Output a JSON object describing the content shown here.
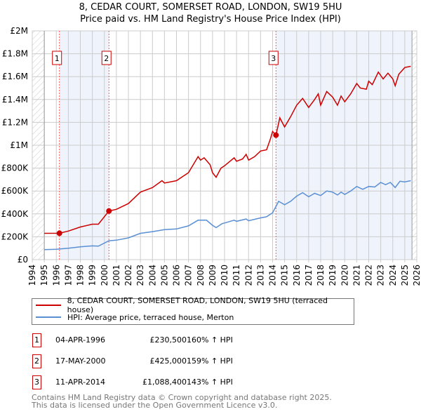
{
  "title": "8, CEDAR COURT, SOMERSET ROAD, LONDON, SW19 5HU",
  "subtitle": "Price paid vs. HM Land Registry's House Price Index (HPI)",
  "chart_data": {
    "type": "line",
    "xlim": [
      1994,
      2026
    ],
    "ylim": [
      0,
      2000000
    ],
    "x_ticks": [
      "1994",
      "1995",
      "1996",
      "1997",
      "1998",
      "1999",
      "2000",
      "2001",
      "2002",
      "2003",
      "2004",
      "2005",
      "2006",
      "2007",
      "2008",
      "2009",
      "2010",
      "2011",
      "2012",
      "2013",
      "2014",
      "2015",
      "2016",
      "2017",
      "2018",
      "2019",
      "2020",
      "2021",
      "2022",
      "2023",
      "2024",
      "2025",
      "2026"
    ],
    "y_ticks": [
      {
        "v": 0,
        "label": "£0"
      },
      {
        "v": 200000,
        "label": "£200K"
      },
      {
        "v": 400000,
        "label": "£400K"
      },
      {
        "v": 600000,
        "label": "£600K"
      },
      {
        "v": 800000,
        "label": "£800K"
      },
      {
        "v": 1000000,
        "label": "£1M"
      },
      {
        "v": 1200000,
        "label": "£1.2M"
      },
      {
        "v": 1400000,
        "label": "£1.4M"
      },
      {
        "v": 1600000,
        "label": "£1.6M"
      },
      {
        "v": 1800000,
        "label": "£1.8M"
      },
      {
        "v": 2000000,
        "label": "£2M"
      }
    ],
    "grid": true,
    "shaded_ranges": [
      [
        1996.26,
        2000.38
      ],
      [
        2014.28,
        2025.6
      ]
    ],
    "hatched_ranges": [
      [
        1994,
        1995
      ],
      [
        2025.6,
        2026
      ]
    ],
    "series": [
      {
        "name": "8, CEDAR COURT, SOMERSET ROAD, LONDON, SW19 5HU (terraced house)",
        "color": "#cc0000",
        "x": [
          1995,
          1996.26,
          1997,
          1998,
          1999,
          1999.5,
          2000.38,
          2001,
          2002,
          2003,
          2004,
          2004.8,
          2005,
          2006,
          2007,
          2007.8,
          2008,
          2008.3,
          2008.8,
          2009,
          2009.3,
          2009.7,
          2010,
          2010.8,
          2011,
          2011.5,
          2011.8,
          2012,
          2012.5,
          2013,
          2013.5,
          2013.8,
          2014,
          2014.28,
          2014.6,
          2015,
          2015.5,
          2016,
          2016.5,
          2017,
          2017.5,
          2017.8,
          2018,
          2018.5,
          2019,
          2019.4,
          2019.7,
          2020,
          2020.5,
          2021,
          2021.3,
          2021.8,
          2022,
          2022.3,
          2022.8,
          2023.2,
          2023.6,
          2024,
          2024.2,
          2024.5,
          2025,
          2025.5
        ],
        "values": [
          230000,
          230500,
          250000,
          285000,
          310000,
          310000,
          425000,
          440000,
          490000,
          590000,
          630000,
          690000,
          670000,
          690000,
          760000,
          900000,
          870000,
          890000,
          830000,
          760000,
          720000,
          800000,
          820000,
          890000,
          860000,
          880000,
          920000,
          870000,
          900000,
          950000,
          960000,
          1050000,
          1120000,
          1088400,
          1240000,
          1160000,
          1250000,
          1350000,
          1410000,
          1330000,
          1400000,
          1450000,
          1350000,
          1470000,
          1420000,
          1350000,
          1430000,
          1380000,
          1450000,
          1540000,
          1500000,
          1490000,
          1560000,
          1530000,
          1640000,
          1580000,
          1630000,
          1580000,
          1520000,
          1620000,
          1680000,
          1690000
        ]
      },
      {
        "name": "HPI: Average price, terraced house, Merton",
        "color": "#5b8fd4",
        "x": [
          1995,
          1996,
          1997,
          1998,
          1999,
          1999.5,
          2000.38,
          2001,
          2002,
          2003,
          2004,
          2005,
          2006,
          2007,
          2007.8,
          2008.5,
          2009,
          2009.3,
          2009.8,
          2010,
          2010.8,
          2011,
          2011.8,
          2012,
          2013,
          2013.5,
          2014,
          2014.5,
          2015,
          2015.5,
          2016,
          2016.5,
          2017,
          2017.5,
          2018,
          2018.5,
          2019,
          2019.4,
          2019.7,
          2020,
          2020.5,
          2021,
          2021.5,
          2022,
          2022.5,
          2023,
          2023.4,
          2023.8,
          2024.2,
          2024.6,
          2025,
          2025.5
        ],
        "values": [
          88000,
          90000,
          100000,
          112000,
          120000,
          118000,
          165000,
          170000,
          190000,
          230000,
          245000,
          262000,
          268000,
          295000,
          345000,
          345000,
          300000,
          280000,
          315000,
          320000,
          345000,
          335000,
          355000,
          340000,
          365000,
          375000,
          410000,
          510000,
          480000,
          510000,
          555000,
          585000,
          550000,
          580000,
          560000,
          600000,
          590000,
          565000,
          590000,
          570000,
          600000,
          640000,
          615000,
          640000,
          635000,
          675000,
          655000,
          675000,
          630000,
          685000,
          680000,
          690000
        ]
      }
    ],
    "sales": [
      {
        "label": "1",
        "x": 2000.38,
        "xdate": 1996.26,
        "value": 230500
      },
      {
        "label": "2",
        "x": 2000.38,
        "value": 425000
      },
      {
        "label": "3",
        "x": 2014.28,
        "value": 1088400
      }
    ]
  },
  "legend": {
    "items": [
      {
        "label": "8, CEDAR COURT, SOMERSET ROAD, LONDON, SW19 5HU (terraced house)",
        "color": "#cc0000"
      },
      {
        "label": "HPI: Average price, terraced house, Merton",
        "color": "#5b8fd4"
      }
    ]
  },
  "transactions": [
    {
      "num": "1",
      "date": "04-APR-1996",
      "price": "£230,500",
      "hpi": "160% ↑ HPI"
    },
    {
      "num": "2",
      "date": "17-MAY-2000",
      "price": "£425,000",
      "hpi": "159% ↑ HPI"
    },
    {
      "num": "3",
      "date": "11-APR-2014",
      "price": "£1,088,400",
      "hpi": "143% ↑ HPI"
    }
  ],
  "footer": {
    "line1": "Contains HM Land Registry data © Crown copyright and database right 2025.",
    "line2": "This data is licensed under the Open Government Licence v3.0."
  }
}
